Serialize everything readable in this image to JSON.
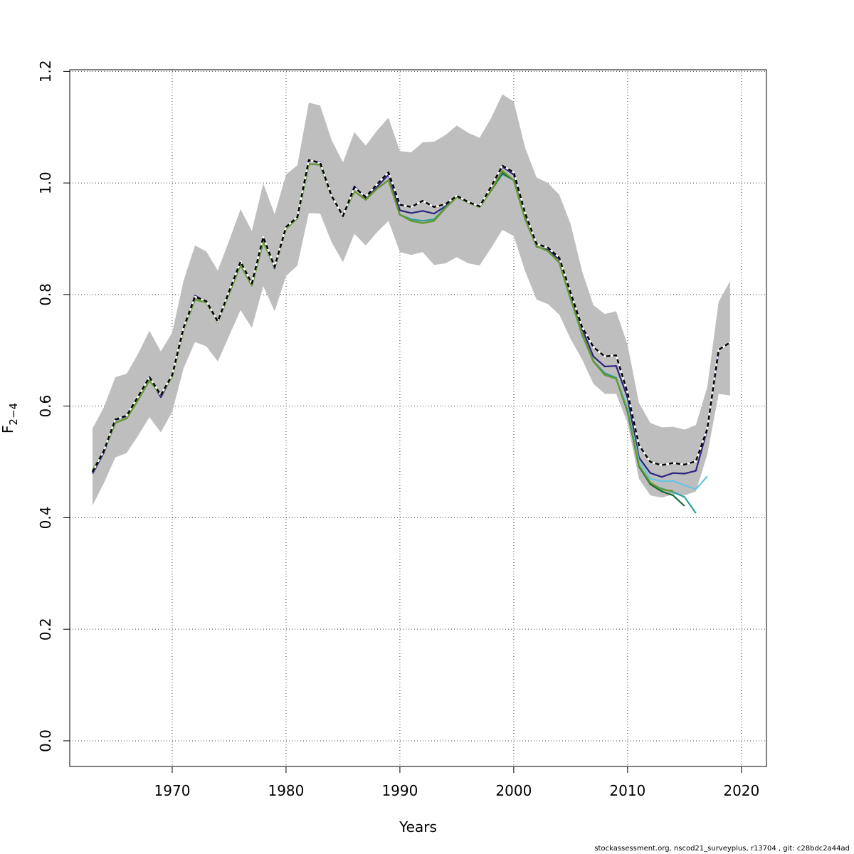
{
  "chart_data": {
    "type": "line",
    "xlabel": "Years",
    "ylabel_main": "F",
    "ylabel_sub": "2−4",
    "xlim": [
      1961,
      2022.2
    ],
    "ylim": [
      -0.046,
      1.203
    ],
    "xticks": [
      1970,
      1980,
      1990,
      2000,
      2010,
      2020
    ],
    "yticks": [
      0.0,
      0.2,
      0.4,
      0.6,
      0.8,
      1.0,
      1.2
    ],
    "grid": true,
    "confidence_band": {
      "color": "#bebebe",
      "x": [
        1963,
        1964,
        1965,
        1966,
        1967,
        1968,
        1969,
        1970,
        1971,
        1972,
        1973,
        1974,
        1975,
        1976,
        1977,
        1978,
        1979,
        1980,
        1981,
        1982,
        1983,
        1984,
        1985,
        1986,
        1987,
        1988,
        1989,
        1990,
        1991,
        1992,
        1993,
        1994,
        1995,
        1996,
        1997,
        1998,
        1999,
        2000,
        2001,
        2002,
        2003,
        2004,
        2005,
        2006,
        2007,
        2008,
        2009,
        2010,
        2011,
        2012,
        2013,
        2014,
        2015,
        2016,
        2017,
        2018,
        2019
      ],
      "upper": [
        0.56,
        0.598,
        0.652,
        0.658,
        0.694,
        0.735,
        0.698,
        0.732,
        0.825,
        0.888,
        0.877,
        0.843,
        0.897,
        0.953,
        0.914,
        0.999,
        0.944,
        1.015,
        1.032,
        1.144,
        1.139,
        1.077,
        1.037,
        1.091,
        1.067,
        1.094,
        1.117,
        1.057,
        1.055,
        1.073,
        1.074,
        1.086,
        1.103,
        1.09,
        1.081,
        1.116,
        1.159,
        1.146,
        1.063,
        1.01,
        1.0,
        0.979,
        0.926,
        0.842,
        0.781,
        0.765,
        0.77,
        0.71,
        0.606,
        0.57,
        0.562,
        0.563,
        0.558,
        0.566,
        0.634,
        0.787,
        0.824
      ],
      "lower": [
        0.422,
        0.462,
        0.508,
        0.516,
        0.547,
        0.58,
        0.553,
        0.59,
        0.668,
        0.715,
        0.707,
        0.68,
        0.726,
        0.772,
        0.74,
        0.815,
        0.77,
        0.833,
        0.852,
        0.946,
        0.945,
        0.894,
        0.858,
        0.909,
        0.888,
        0.912,
        0.932,
        0.876,
        0.871,
        0.876,
        0.853,
        0.856,
        0.867,
        0.856,
        0.852,
        0.883,
        0.916,
        0.905,
        0.842,
        0.791,
        0.783,
        0.764,
        0.72,
        0.684,
        0.64,
        0.622,
        0.622,
        0.57,
        0.47,
        0.44,
        0.436,
        0.442,
        0.44,
        0.447,
        0.513,
        0.622,
        0.619
      ]
    },
    "series": [
      {
        "color": "#2d2580",
        "x": [
          1963,
          1964,
          1965,
          1966,
          1967,
          1968,
          1969,
          1970,
          1971,
          1972,
          1973,
          1974,
          1975,
          1976,
          1977,
          1978,
          1979,
          1980,
          1981,
          1982,
          1983,
          1984,
          1985,
          1986,
          1987,
          1988,
          1989,
          1990,
          1991,
          1992,
          1993,
          1994,
          1995,
          1996,
          1997,
          1998,
          1999,
          2000,
          2001,
          2002,
          2003,
          2004,
          2005,
          2006,
          2007,
          2008,
          2009,
          2010,
          2011,
          2012,
          2013,
          2014,
          2015,
          2016,
          2017,
          2018
        ],
        "values": [
          0.479,
          0.517,
          0.575,
          0.582,
          0.617,
          0.652,
          0.616,
          0.655,
          0.74,
          0.798,
          0.787,
          0.752,
          0.805,
          0.858,
          0.818,
          0.902,
          0.847,
          0.921,
          0.938,
          1.041,
          1.037,
          0.977,
          0.94,
          0.994,
          0.973,
          0.993,
          1.015,
          0.951,
          0.946,
          0.95,
          0.945,
          0.958,
          0.977,
          0.966,
          0.958,
          0.993,
          1.029,
          1.015,
          0.94,
          0.886,
          0.88,
          0.863,
          0.8,
          0.739,
          0.689,
          0.671,
          0.672,
          0.615,
          0.508,
          0.48,
          0.473,
          0.48,
          0.479,
          0.484,
          0.558,
          0.697
        ]
      },
      {
        "color": "#2e9e9a",
        "x": [
          1963,
          1964,
          1965,
          1966,
          1967,
          1968,
          1969,
          1970,
          1971,
          1972,
          1973,
          1974,
          1975,
          1976,
          1977,
          1978,
          1979,
          1980,
          1981,
          1982,
          1983,
          1984,
          1985,
          1986,
          1987,
          1988,
          1989,
          1990,
          1991,
          1992,
          1993,
          1994,
          1995,
          1996,
          1997,
          1998,
          1999,
          2000,
          2001,
          2002,
          2003,
          2004,
          2005,
          2006,
          2007,
          2008,
          2009,
          2010,
          2011,
          2012,
          2013,
          2014,
          2015,
          2016
        ],
        "values": [
          0.484,
          0.52,
          0.57,
          0.578,
          0.611,
          0.646,
          0.62,
          0.653,
          0.738,
          0.791,
          0.786,
          0.751,
          0.802,
          0.853,
          0.816,
          0.895,
          0.849,
          0.918,
          0.937,
          1.034,
          1.033,
          0.976,
          0.942,
          0.985,
          0.97,
          0.99,
          1.005,
          0.943,
          0.935,
          0.932,
          0.935,
          0.956,
          0.975,
          0.965,
          0.957,
          0.986,
          1.016,
          1.005,
          0.935,
          0.887,
          0.878,
          0.857,
          0.792,
          0.728,
          0.681,
          0.659,
          0.651,
          0.594,
          0.494,
          0.461,
          0.452,
          0.446,
          0.437,
          0.408
        ]
      },
      {
        "color": "#65c5e4",
        "x": [
          2009,
          2010,
          2011,
          2012,
          2013,
          2014,
          2015,
          2016,
          2017
        ],
        "values": [
          0.65,
          0.598,
          0.502,
          0.47,
          0.465,
          0.466,
          0.458,
          0.451,
          0.474
        ]
      },
      {
        "color": "#136b35",
        "x": [
          1963,
          1964,
          1965,
          1966,
          1967,
          1968,
          1969,
          1970,
          1971,
          1972,
          1973,
          1974,
          1975,
          1976,
          1977,
          1978,
          1979,
          1980,
          1981,
          1982,
          1983,
          1984,
          1985,
          1986,
          1987,
          1988,
          1989,
          1990,
          1991,
          1992,
          1993,
          1994,
          1995,
          1996,
          1997,
          1998,
          1999,
          2000,
          2001,
          2002,
          2003,
          2004,
          2005,
          2006,
          2007,
          2008,
          2009,
          2010,
          2011,
          2012,
          2013,
          2014,
          2015
        ],
        "values": [
          0.483,
          0.52,
          0.57,
          0.578,
          0.611,
          0.646,
          0.62,
          0.653,
          0.738,
          0.791,
          0.786,
          0.751,
          0.802,
          0.853,
          0.816,
          0.895,
          0.849,
          0.918,
          0.937,
          1.034,
          1.033,
          0.976,
          0.942,
          0.985,
          0.97,
          0.99,
          1.005,
          0.943,
          0.932,
          0.928,
          0.932,
          0.955,
          0.975,
          0.965,
          0.957,
          0.986,
          1.018,
          1.005,
          0.935,
          0.887,
          0.878,
          0.857,
          0.792,
          0.73,
          0.68,
          0.656,
          0.649,
          0.59,
          0.492,
          0.46,
          0.447,
          0.44,
          0.421
        ]
      },
      {
        "color": "#6b9a2a",
        "x": [
          1963,
          1964,
          1965,
          1966,
          1967,
          1968,
          1969,
          1970,
          1971,
          1972,
          1973,
          1974,
          1975,
          1976,
          1977,
          1978,
          1979,
          1980,
          1981,
          1982,
          1983,
          1984,
          1985,
          1986,
          1987,
          1988,
          1989,
          1990,
          1991,
          1992,
          1993,
          1994,
          1995,
          1996,
          1997,
          1998,
          1999,
          2000,
          2001,
          2002,
          2003,
          2004,
          2005,
          2006,
          2007,
          2008,
          2009,
          2010,
          2011,
          2012,
          2013,
          2014
        ],
        "values": [
          0.485,
          0.521,
          0.57,
          0.578,
          0.611,
          0.646,
          0.62,
          0.653,
          0.738,
          0.791,
          0.786,
          0.751,
          0.802,
          0.853,
          0.816,
          0.895,
          0.849,
          0.918,
          0.937,
          1.034,
          1.033,
          0.976,
          0.942,
          0.985,
          0.97,
          0.99,
          1.005,
          0.943,
          0.932,
          0.928,
          0.932,
          0.955,
          0.975,
          0.965,
          0.957,
          0.986,
          1.022,
          1.005,
          0.935,
          0.887,
          0.878,
          0.857,
          0.792,
          0.73,
          0.68,
          0.656,
          0.649,
          0.592,
          0.494,
          0.463,
          0.45,
          0.448
        ]
      },
      {
        "color": "#000000",
        "dashed": true,
        "x": [
          1963,
          1964,
          1965,
          1966,
          1967,
          1968,
          1969,
          1970,
          1971,
          1972,
          1973,
          1974,
          1975,
          1976,
          1977,
          1978,
          1979,
          1980,
          1981,
          1982,
          1983,
          1984,
          1985,
          1986,
          1987,
          1988,
          1989,
          1990,
          1991,
          1992,
          1993,
          1994,
          1995,
          1996,
          1997,
          1998,
          1999,
          2000,
          2001,
          2002,
          2003,
          2004,
          2005,
          2006,
          2007,
          2008,
          2009,
          2010,
          2011,
          2012,
          2013,
          2014,
          2015,
          2016,
          2017,
          2018,
          2019
        ],
        "values": [
          0.482,
          0.52,
          0.576,
          0.583,
          0.617,
          0.652,
          0.62,
          0.656,
          0.741,
          0.796,
          0.788,
          0.752,
          0.806,
          0.859,
          0.82,
          0.903,
          0.85,
          0.921,
          0.939,
          1.041,
          1.036,
          0.977,
          0.941,
          0.992,
          0.975,
          0.998,
          1.019,
          0.961,
          0.957,
          0.968,
          0.957,
          0.962,
          0.977,
          0.966,
          0.958,
          0.993,
          1.031,
          1.019,
          0.946,
          0.891,
          0.884,
          0.866,
          0.803,
          0.742,
          0.706,
          0.689,
          0.691,
          0.624,
          0.53,
          0.5,
          0.494,
          0.498,
          0.495,
          0.501,
          0.559,
          0.701,
          0.714
        ]
      }
    ]
  },
  "footer_text": "stockassessment.org, nscod21_surveyplus, r13704 , git: c28bdc2a44ad"
}
